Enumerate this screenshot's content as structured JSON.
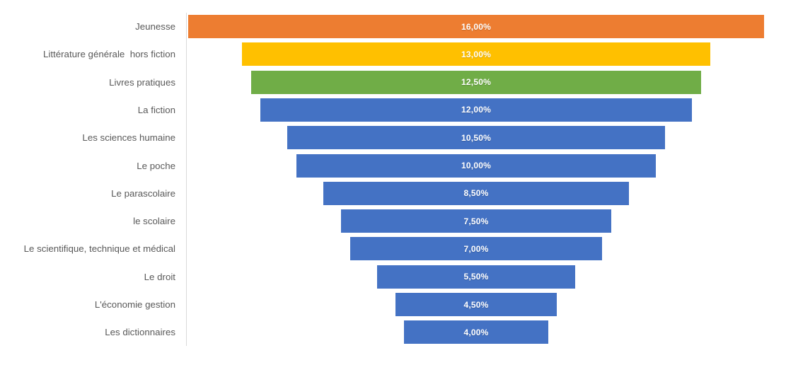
{
  "chart_data": {
    "type": "funnel",
    "orientation": "horizontal-centered",
    "title": "",
    "xlabel": "",
    "ylabel": "",
    "grid": false,
    "legend": false,
    "categories": [
      "Jeunesse",
      "Littérature générale  hors fiction",
      "Livres pratiques",
      "La fiction",
      "Les sciences humaine",
      "Le poche",
      "Le parascolaire",
      "le scolaire",
      "Le scientifique, technique et médical",
      "Le droit",
      "L'économie gestion",
      "Les dictionnaires"
    ],
    "values": [
      16,
      13,
      12.5,
      12,
      10.5,
      10,
      8.5,
      7.5,
      7,
      5.5,
      4.5,
      4
    ],
    "value_labels": [
      "16,00%",
      "13,00%",
      "12,50%",
      "12,00%",
      "10,50%",
      "10,00%",
      "8,50%",
      "7,50%",
      "7,00%",
      "5,50%",
      "4,50%",
      "4,00%"
    ],
    "bar_colors": [
      "#ED7D31",
      "#FFC000",
      "#70AD47",
      "#4472C4",
      "#4472C4",
      "#4472C4",
      "#4472C4",
      "#4472C4",
      "#4472C4",
      "#4472C4",
      "#4472C4",
      "#4472C4"
    ],
    "value_label_color": "#FFFFFF",
    "category_label_color": "#595959",
    "axis_line_color": "#D9D9D9"
  }
}
